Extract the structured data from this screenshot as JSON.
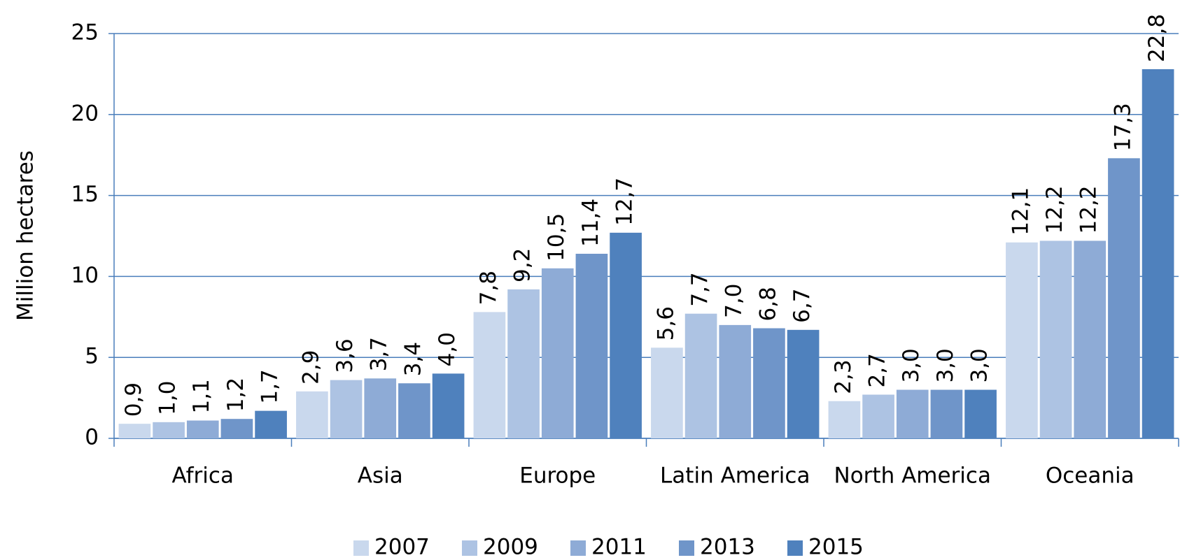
{
  "chart_data": {
    "type": "bar",
    "y_label": "Million hectares",
    "categories": [
      "Africa",
      "Asia",
      "Europe",
      "Latin America",
      "North America",
      "Oceania"
    ],
    "series": [
      {
        "name": "2007",
        "color": "#c9d8ed",
        "values": [
          0.9,
          2.9,
          7.8,
          5.6,
          2.3,
          12.1
        ],
        "value_labels": [
          "0,9",
          "2,9",
          "7,8",
          "5,6",
          "2,3",
          "12,1"
        ]
      },
      {
        "name": "2009",
        "color": "#adc3e3",
        "values": [
          1.0,
          3.6,
          9.2,
          7.7,
          2.7,
          12.2
        ],
        "value_labels": [
          "1,0",
          "3,6",
          "9,2",
          "7,7",
          "2,7",
          "12,2"
        ]
      },
      {
        "name": "2011",
        "color": "#8eabd6",
        "values": [
          1.1,
          3.7,
          10.5,
          7.0,
          3.0,
          12.2
        ],
        "value_labels": [
          "1,1",
          "3,7",
          "10,5",
          "7,0",
          "3,0",
          "12,2"
        ]
      },
      {
        "name": "2013",
        "color": "#6f95c9",
        "values": [
          1.2,
          3.4,
          11.4,
          6.8,
          3.0,
          17.3
        ],
        "value_labels": [
          "1,2",
          "3,4",
          "11,4",
          "6,8",
          "3,0",
          "17,3"
        ]
      },
      {
        "name": "2015",
        "color": "#4f81bd",
        "values": [
          1.7,
          4.0,
          12.7,
          6.7,
          3.0,
          22.8
        ],
        "value_labels": [
          "1,7",
          "4,0",
          "12,7",
          "6,7",
          "3,0",
          "22,8"
        ]
      }
    ],
    "ylim": [
      0,
      25
    ],
    "yticks": [
      0,
      5,
      10,
      15,
      20,
      25
    ],
    "grid": true,
    "legend": "bottom"
  }
}
